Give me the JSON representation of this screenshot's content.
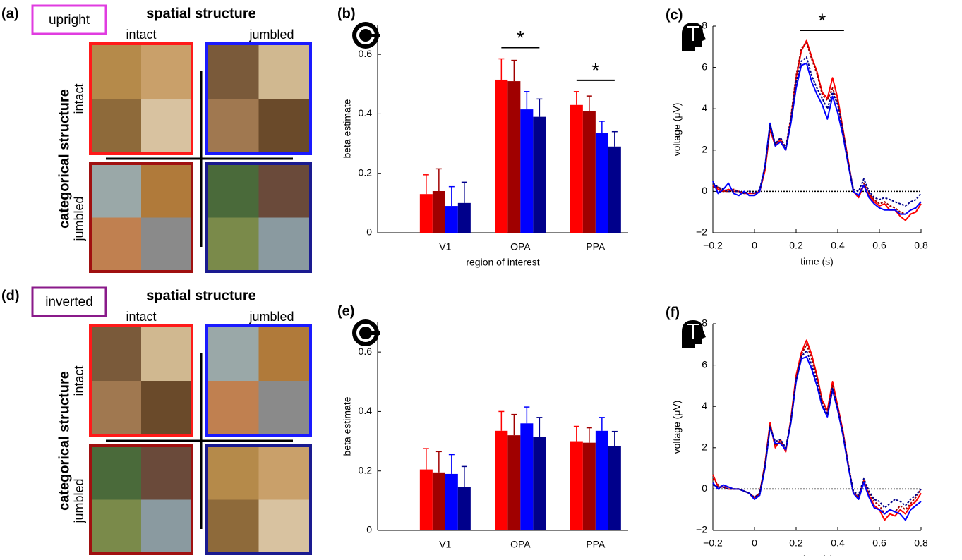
{
  "diagrams": [
    {
      "label": "(a)",
      "condition": "upright",
      "condition_color": "#e03ce0",
      "column_header": "spatial structure",
      "columns": [
        "intact",
        "jumbled"
      ],
      "row_header": "categorical structure",
      "rows": [
        "intact",
        "jumbled"
      ],
      "frame_colors": [
        "#ff1a1a",
        "#1a1aff",
        "#a01010",
        "#1a1a90"
      ]
    },
    {
      "label": "(d)",
      "condition": "inverted",
      "condition_color": "#8a1a8a",
      "column_header": "spatial structure",
      "columns": [
        "intact",
        "jumbled"
      ],
      "row_header": "categorical structure",
      "rows": [
        "intact",
        "jumbled"
      ],
      "frame_colors": [
        "#ff1a1a",
        "#1a1aff",
        "#a01010",
        "#1a1a90"
      ]
    }
  ],
  "chart_data": [
    {
      "type": "bar",
      "panel_label": "(b)",
      "y_label": "beta estimate",
      "x_label": "region of interest",
      "categories": [
        "V1",
        "OPA",
        "PPA"
      ],
      "series": [
        {
          "color": "#ff0000",
          "values": [
            0.13,
            0.515,
            0.43
          ],
          "errors": [
            0.065,
            0.07,
            0.045
          ]
        },
        {
          "color": "#a00000",
          "values": [
            0.14,
            0.51,
            0.41
          ],
          "errors": [
            0.075,
            0.07,
            0.05
          ]
        },
        {
          "color": "#0000ff",
          "values": [
            0.09,
            0.415,
            0.335
          ],
          "errors": [
            0.065,
            0.06,
            0.04
          ]
        },
        {
          "color": "#00008b",
          "values": [
            0.1,
            0.39,
            0.29
          ],
          "errors": [
            0.07,
            0.06,
            0.05
          ]
        }
      ],
      "ylim": [
        0,
        0.7
      ],
      "yticks": [
        0,
        0.2,
        0.4,
        0.6
      ],
      "annotations": [
        {
          "text": "*",
          "category": "OPA"
        },
        {
          "text": "*",
          "category": "PPA"
        }
      ]
    },
    {
      "type": "line",
      "panel_label": "(c)",
      "y_label": "voltage (μV)",
      "x_label": "time (s)",
      "x": [
        -0.2,
        -0.175,
        -0.15,
        -0.125,
        -0.1,
        -0.075,
        -0.05,
        -0.025,
        0,
        0.025,
        0.05,
        0.075,
        0.1,
        0.125,
        0.15,
        0.175,
        0.2,
        0.225,
        0.25,
        0.275,
        0.3,
        0.325,
        0.35,
        0.375,
        0.4,
        0.425,
        0.45,
        0.475,
        0.5,
        0.525,
        0.55,
        0.575,
        0.6,
        0.625,
        0.65,
        0.675,
        0.7,
        0.725,
        0.75,
        0.775,
        0.8
      ],
      "series": [
        {
          "color": "#ff0000",
          "style": "solid",
          "values": [
            0.3,
            0.1,
            0.0,
            0.1,
            0.0,
            0.0,
            -0.1,
            -0.1,
            -0.1,
            0.0,
            1.0,
            3.0,
            2.2,
            2.5,
            2.0,
            3.5,
            5.5,
            6.8,
            7.3,
            6.5,
            5.8,
            4.8,
            4.5,
            5.5,
            4.5,
            3.0,
            1.5,
            0.0,
            -0.3,
            0.3,
            -0.2,
            -0.5,
            -0.7,
            -0.6,
            -0.9,
            -0.9,
            -1.2,
            -1.4,
            -1.1,
            -1.0,
            -0.6
          ]
        },
        {
          "color": "#a00000",
          "style": "dotted",
          "values": [
            0.2,
            0.2,
            0.0,
            0.0,
            0.1,
            0.0,
            -0.1,
            0.0,
            -0.1,
            0.0,
            1.1,
            3.1,
            2.3,
            2.6,
            2.1,
            3.6,
            5.6,
            6.9,
            7.2,
            6.4,
            5.7,
            4.7,
            4.4,
            5.0,
            4.3,
            2.9,
            1.4,
            0.0,
            -0.2,
            0.4,
            -0.1,
            -0.4,
            -0.6,
            -0.5,
            -0.7,
            -0.8,
            -1.0,
            -1.1,
            -0.9,
            -0.8,
            -0.5
          ]
        },
        {
          "color": "#0000ff",
          "style": "solid",
          "values": [
            0.5,
            -0.1,
            0.1,
            0.4,
            -0.1,
            -0.2,
            0.0,
            -0.2,
            -0.2,
            0.0,
            1.2,
            3.3,
            2.2,
            2.4,
            2.0,
            3.3,
            5.0,
            6.1,
            6.2,
            5.3,
            4.7,
            4.2,
            3.5,
            4.6,
            3.8,
            2.7,
            1.3,
            0.0,
            -0.2,
            0.3,
            -0.3,
            -0.6,
            -0.8,
            -0.9,
            -0.9,
            -0.9,
            -1.1,
            -1.1,
            -0.9,
            -0.8,
            -0.5
          ]
        },
        {
          "color": "#00008b",
          "style": "dotted",
          "values": [
            0.4,
            0.2,
            0.1,
            0.0,
            0.0,
            0.0,
            -0.1,
            0.0,
            -0.1,
            0.1,
            1.2,
            3.2,
            2.3,
            2.6,
            2.1,
            3.5,
            5.3,
            6.3,
            6.5,
            5.6,
            5.0,
            4.5,
            4.0,
            4.8,
            4.2,
            2.9,
            1.4,
            0.1,
            0.0,
            0.6,
            0.0,
            -0.3,
            -0.4,
            -0.3,
            -0.4,
            -0.5,
            -0.6,
            -0.7,
            -0.5,
            -0.4,
            -0.1
          ]
        }
      ],
      "xlim": [
        -0.2,
        0.8
      ],
      "xticks": [
        {
          "value": -0.2,
          "label": "−0.2"
        },
        0,
        0.2,
        0.4,
        0.6,
        0.8
      ],
      "ylim": [
        -2,
        8
      ],
      "yticks": [
        {
          "value": -2,
          "label": "−2"
        },
        0,
        2,
        4,
        6,
        8
      ],
      "annotations": [
        {
          "text": "*",
          "x": [
            0.22,
            0.43
          ]
        }
      ]
    },
    {
      "type": "bar",
      "panel_label": "(e)",
      "y_label": "beta estimate",
      "x_label": "region of interest",
      "categories": [
        "V1",
        "OPA",
        "PPA"
      ],
      "series": [
        {
          "color": "#ff0000",
          "values": [
            0.205,
            0.335,
            0.3
          ],
          "errors": [
            0.07,
            0.065,
            0.05
          ]
        },
        {
          "color": "#a00000",
          "values": [
            0.195,
            0.32,
            0.295
          ],
          "errors": [
            0.07,
            0.07,
            0.05
          ]
        },
        {
          "color": "#0000ff",
          "values": [
            0.19,
            0.36,
            0.335
          ],
          "errors": [
            0.065,
            0.055,
            0.045
          ]
        },
        {
          "color": "#00008b",
          "values": [
            0.145,
            0.315,
            0.283
          ],
          "errors": [
            0.07,
            0.065,
            0.05
          ]
        }
      ],
      "ylim": [
        0,
        0.7
      ],
      "yticks": [
        0,
        0.2,
        0.4,
        0.6
      ]
    },
    {
      "type": "line",
      "panel_label": "(f)",
      "y_label": "voltage (μV)",
      "x_label": "time (s)",
      "x": [
        -0.2,
        -0.175,
        -0.15,
        -0.125,
        -0.1,
        -0.075,
        -0.05,
        -0.025,
        0,
        0.025,
        0.05,
        0.075,
        0.1,
        0.125,
        0.15,
        0.175,
        0.2,
        0.225,
        0.25,
        0.275,
        0.3,
        0.325,
        0.35,
        0.375,
        0.4,
        0.425,
        0.45,
        0.475,
        0.5,
        0.525,
        0.55,
        0.575,
        0.6,
        0.625,
        0.65,
        0.675,
        0.7,
        0.725,
        0.75,
        0.775,
        0.8
      ],
      "series": [
        {
          "color": "#ff0000",
          "style": "solid",
          "values": [
            0.7,
            0.1,
            0.1,
            0.0,
            0.0,
            0.0,
            -0.1,
            -0.2,
            -0.4,
            -0.2,
            1.2,
            3.2,
            2.0,
            2.4,
            1.8,
            3.4,
            5.5,
            6.6,
            7.2,
            6.5,
            5.5,
            4.3,
            3.8,
            5.2,
            4.0,
            2.8,
            1.2,
            -0.2,
            -0.4,
            0.4,
            -0.3,
            -0.8,
            -1.0,
            -1.5,
            -1.2,
            -1.3,
            -1.0,
            -1.2,
            -0.8,
            -0.6,
            -0.2
          ]
        },
        {
          "color": "#a00000",
          "style": "dotted",
          "values": [
            0.5,
            0.2,
            0.1,
            0.1,
            0.0,
            0.0,
            -0.1,
            -0.2,
            -0.5,
            -0.2,
            1.2,
            3.1,
            2.1,
            2.3,
            1.9,
            3.3,
            5.3,
            6.5,
            7.0,
            6.3,
            5.4,
            4.2,
            3.7,
            5.0,
            3.9,
            2.7,
            1.2,
            -0.2,
            -0.4,
            0.4,
            -0.2,
            -0.6,
            -0.8,
            -1.2,
            -1.0,
            -1.1,
            -0.8,
            -1.0,
            -0.7,
            -0.4,
            0.0
          ]
        },
        {
          "color": "#0000ff",
          "style": "solid",
          "values": [
            0.3,
            0.0,
            0.2,
            0.1,
            0.0,
            0.0,
            -0.1,
            -0.2,
            -0.5,
            -0.3,
            1.0,
            3.0,
            2.2,
            2.2,
            1.9,
            3.2,
            5.2,
            6.3,
            6.4,
            5.8,
            5.0,
            4.0,
            3.5,
            4.8,
            3.8,
            2.6,
            1.1,
            -0.2,
            -0.5,
            0.3,
            -0.4,
            -0.9,
            -1.0,
            -1.2,
            -1.0,
            -1.1,
            -1.2,
            -1.5,
            -1.0,
            -0.8,
            -0.6
          ]
        },
        {
          "color": "#00008b",
          "style": "dotted",
          "values": [
            0.2,
            0.1,
            0.1,
            0.0,
            0.0,
            0.0,
            -0.1,
            -0.2,
            -0.4,
            -0.2,
            1.1,
            3.0,
            2.3,
            2.4,
            2.0,
            3.3,
            5.3,
            6.4,
            6.7,
            6.0,
            5.2,
            4.1,
            3.6,
            4.9,
            3.9,
            2.7,
            1.2,
            -0.1,
            -0.3,
            0.5,
            -0.1,
            -0.5,
            -0.6,
            -0.9,
            -0.7,
            -0.5,
            -0.6,
            -0.8,
            -0.5,
            -0.3,
            0.0
          ]
        }
      ],
      "xlim": [
        -0.2,
        0.8
      ],
      "xticks": [
        {
          "value": -0.2,
          "label": "−0.2"
        },
        0,
        0.2,
        0.4,
        0.6,
        0.8
      ],
      "ylim": [
        -2,
        8
      ],
      "yticks": [
        {
          "value": -2,
          "label": "−2"
        },
        0,
        2,
        4,
        6,
        8
      ]
    }
  ]
}
